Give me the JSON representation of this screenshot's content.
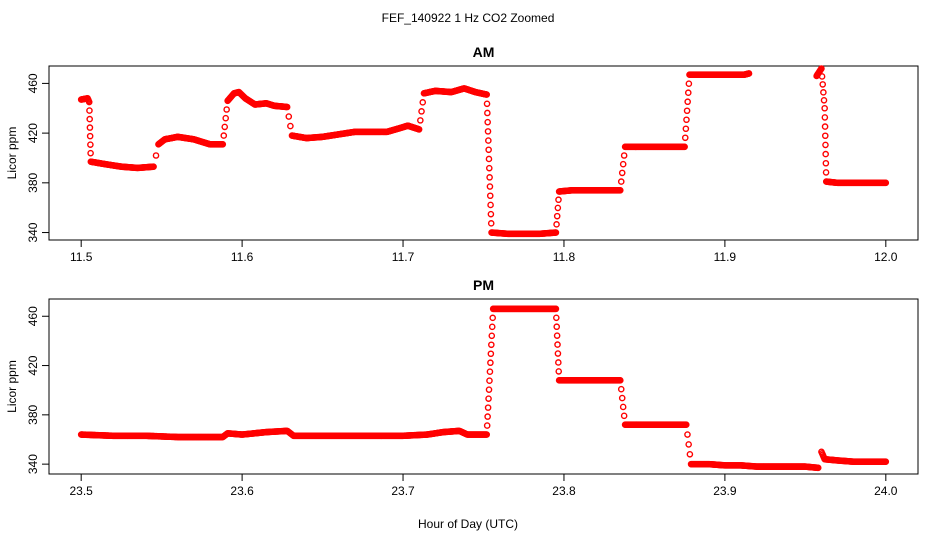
{
  "figure": {
    "title": "FEF_140922  1 Hz CO2 Zoomed",
    "xlabel": "Hour of Day (UTC)"
  },
  "chart_data": [
    {
      "type": "scatter",
      "title": "AM",
      "ylabel": "Licor ppm",
      "xlim": [
        11.48,
        12.02
      ],
      "ylim": [
        334,
        474
      ],
      "x_ticks": [
        "11.5",
        "11.6",
        "11.7",
        "11.8",
        "11.9",
        "12.0"
      ],
      "y_ticks": [
        "340",
        "380",
        "420",
        "460"
      ],
      "marker": "open-circle",
      "color": "#ff0000",
      "grid": false,
      "segments": [
        [
          [
            11.5,
            447
          ],
          [
            11.504,
            448
          ],
          [
            11.505,
            445
          ]
        ],
        [
          [
            11.506,
            397
          ],
          [
            11.515,
            395
          ],
          [
            11.525,
            393
          ],
          [
            11.535,
            392
          ],
          [
            11.545,
            393
          ]
        ],
        [
          [
            11.548,
            411
          ],
          [
            11.552,
            415
          ],
          [
            11.56,
            417
          ],
          [
            11.57,
            415
          ],
          [
            11.58,
            411
          ],
          [
            11.588,
            411
          ]
        ],
        [
          [
            11.591,
            446
          ],
          [
            11.595,
            452
          ],
          [
            11.598,
            453
          ],
          [
            11.602,
            448
          ],
          [
            11.608,
            443
          ],
          [
            11.615,
            444
          ],
          [
            11.62,
            442
          ],
          [
            11.628,
            441
          ]
        ],
        [
          [
            11.631,
            418
          ],
          [
            11.64,
            416
          ],
          [
            11.65,
            417
          ],
          [
            11.66,
            419
          ],
          [
            11.67,
            421
          ],
          [
            11.68,
            421
          ],
          [
            11.69,
            421
          ],
          [
            11.698,
            424
          ],
          [
            11.703,
            426
          ],
          [
            11.71,
            423
          ]
        ],
        [
          [
            11.713,
            452
          ],
          [
            11.72,
            454
          ],
          [
            11.73,
            453
          ],
          [
            11.738,
            456
          ],
          [
            11.745,
            453
          ],
          [
            11.752,
            451
          ]
        ],
        [
          [
            11.755,
            340
          ],
          [
            11.765,
            339
          ],
          [
            11.775,
            339
          ],
          [
            11.785,
            339
          ],
          [
            11.795,
            340
          ]
        ],
        [
          [
            11.797,
            373
          ],
          [
            11.805,
            374
          ],
          [
            11.815,
            374
          ],
          [
            11.825,
            374
          ],
          [
            11.835,
            374
          ]
        ],
        [
          [
            11.838,
            409
          ],
          [
            11.85,
            409
          ],
          [
            11.862,
            409
          ],
          [
            11.875,
            409
          ]
        ],
        [
          [
            11.878,
            467
          ],
          [
            11.888,
            467
          ],
          [
            11.9,
            467
          ],
          [
            11.912,
            467
          ],
          [
            11.915,
            468
          ]
        ],
        [
          [
            11.957,
            466
          ],
          [
            11.96,
            472
          ],
          [
            11.962,
            440
          ]
        ],
        [
          [
            11.963,
            381
          ],
          [
            11.97,
            380
          ],
          [
            11.98,
            380
          ],
          [
            11.99,
            380
          ],
          [
            12.0,
            380
          ]
        ]
      ],
      "transitions": [
        [
          [
            11.505,
            445
          ],
          [
            11.506,
            397
          ]
        ],
        [
          [
            11.545,
            393
          ],
          [
            11.548,
            411
          ]
        ],
        [
          [
            11.588,
            411
          ],
          [
            11.591,
            446
          ]
        ],
        [
          [
            11.628,
            441
          ],
          [
            11.631,
            418
          ]
        ],
        [
          [
            11.71,
            423
          ],
          [
            11.713,
            452
          ]
        ],
        [
          [
            11.752,
            451
          ],
          [
            11.755,
            340
          ]
        ],
        [
          [
            11.795,
            340
          ],
          [
            11.797,
            373
          ]
        ],
        [
          [
            11.835,
            374
          ],
          [
            11.838,
            409
          ]
        ],
        [
          [
            11.875,
            409
          ],
          [
            11.878,
            467
          ]
        ],
        [
          [
            11.962,
            440
          ],
          [
            11.963,
            381
          ]
        ]
      ]
    },
    {
      "type": "scatter",
      "title": "PM",
      "ylabel": "Licor ppm",
      "xlim": [
        23.48,
        24.02
      ],
      "ylim": [
        332,
        474
      ],
      "x_ticks": [
        "23.5",
        "23.6",
        "23.7",
        "23.8",
        "23.9",
        "24.0"
      ],
      "y_ticks": [
        "340",
        "380",
        "420",
        "460"
      ],
      "marker": "open-circle",
      "color": "#ff0000",
      "grid": false,
      "segments": [
        [
          [
            23.5,
            364
          ],
          [
            23.52,
            363
          ],
          [
            23.54,
            363
          ],
          [
            23.56,
            362
          ],
          [
            23.575,
            362
          ],
          [
            23.588,
            362
          ],
          [
            23.591,
            365
          ],
          [
            23.6,
            364
          ],
          [
            23.615,
            366
          ],
          [
            23.628,
            367
          ],
          [
            23.632,
            363
          ],
          [
            23.645,
            363
          ],
          [
            23.66,
            363
          ],
          [
            23.68,
            363
          ],
          [
            23.7,
            363
          ],
          [
            23.715,
            364
          ],
          [
            23.725,
            366
          ],
          [
            23.735,
            367
          ],
          [
            23.74,
            364
          ],
          [
            23.752,
            364
          ]
        ],
        [
          [
            23.756,
            466
          ],
          [
            23.765,
            466
          ],
          [
            23.775,
            466
          ],
          [
            23.785,
            466
          ],
          [
            23.795,
            466
          ]
        ],
        [
          [
            23.797,
            408
          ],
          [
            23.81,
            408
          ],
          [
            23.822,
            408
          ],
          [
            23.835,
            408
          ]
        ],
        [
          [
            23.838,
            372
          ],
          [
            23.85,
            372
          ],
          [
            23.862,
            372
          ],
          [
            23.876,
            372
          ]
        ],
        [
          [
            23.879,
            340
          ],
          [
            23.89,
            340
          ],
          [
            23.9,
            339
          ],
          [
            23.91,
            339
          ],
          [
            23.92,
            338
          ],
          [
            23.935,
            338
          ],
          [
            23.95,
            338
          ],
          [
            23.958,
            337
          ]
        ],
        [
          [
            23.96,
            350
          ],
          [
            23.962,
            344
          ],
          [
            23.97,
            343
          ],
          [
            23.98,
            342
          ],
          [
            23.99,
            342
          ],
          [
            24.0,
            342
          ]
        ]
      ],
      "transitions": [
        [
          [
            23.752,
            364
          ],
          [
            23.756,
            466
          ]
        ],
        [
          [
            23.795,
            466
          ],
          [
            23.797,
            408
          ]
        ],
        [
          [
            23.835,
            408
          ],
          [
            23.838,
            372
          ]
        ],
        [
          [
            23.876,
            372
          ],
          [
            23.879,
            340
          ]
        ]
      ]
    }
  ]
}
